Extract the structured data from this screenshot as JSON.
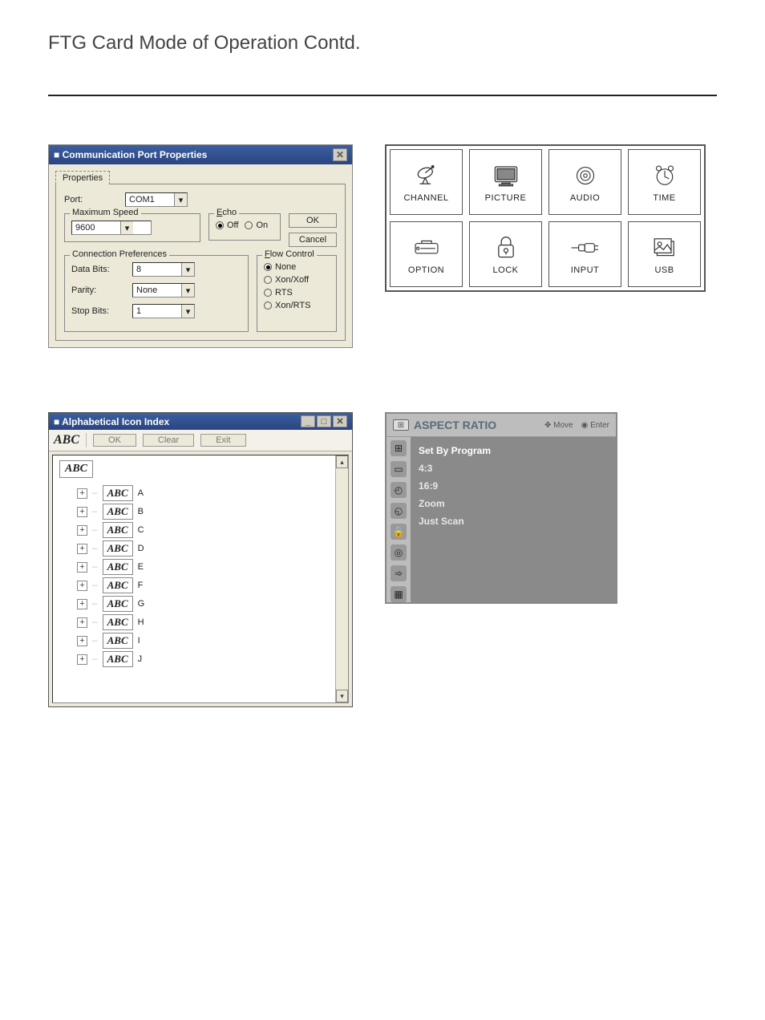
{
  "page": {
    "title": "FTG Card Mode of Operation Contd."
  },
  "commDialog": {
    "title": "Communication Port Properties",
    "tab_label": "Properties",
    "port_label": "Port:",
    "port_value": "COM1",
    "maxspeed_legend": "Maximum Speed",
    "maxspeed_value": "9600",
    "echo_legend": "Echo",
    "echo_off": "Off",
    "echo_on": "On",
    "ok_label": "OK",
    "cancel_label": "Cancel",
    "connpref_legend": "Connection Preferences",
    "databits_label": "Data Bits:",
    "databits_value": "8",
    "parity_label": "Parity:",
    "parity_value": "None",
    "stopbits_label": "Stop Bits:",
    "stopbits_value": "1",
    "flow_legend": "Flow Control",
    "flow_none": "None",
    "flow_xonxoff": "Xon/Xoff",
    "flow_rts": "RTS",
    "flow_xonrts": "Xon/RTS"
  },
  "tvgrid": {
    "cells": [
      {
        "label": "CHANNEL",
        "icon": "satellite-icon"
      },
      {
        "label": "PICTURE",
        "icon": "tv-icon"
      },
      {
        "label": "AUDIO",
        "icon": "speaker-icon"
      },
      {
        "label": "TIME",
        "icon": "clock-icon"
      },
      {
        "label": "OPTION",
        "icon": "toolbox-icon"
      },
      {
        "label": "LOCK",
        "icon": "lock-icon"
      },
      {
        "label": "INPUT",
        "icon": "plug-icon"
      },
      {
        "label": "USB",
        "icon": "photo-icon"
      }
    ]
  },
  "iconIndex": {
    "title": "Alphabetical Icon Index",
    "abc": "ABC",
    "btn_ok": "OK",
    "btn_clear": "Clear",
    "btn_exit": "Exit",
    "root": "ABC",
    "letters": [
      "A",
      "B",
      "C",
      "D",
      "E",
      "F",
      "G",
      "H",
      "I",
      "J"
    ],
    "node_icon_text": "ABC"
  },
  "aspectRatio": {
    "title": "ASPECT RATIO",
    "hint_move": "Move",
    "hint_enter": "Enter",
    "items": [
      "Set By Program",
      "4:3",
      "16:9",
      "Zoom",
      "Just Scan"
    ],
    "side_icons": [
      "plus",
      "screen",
      "clock1",
      "clock2",
      "lock",
      "target",
      "plug",
      "photo"
    ]
  }
}
